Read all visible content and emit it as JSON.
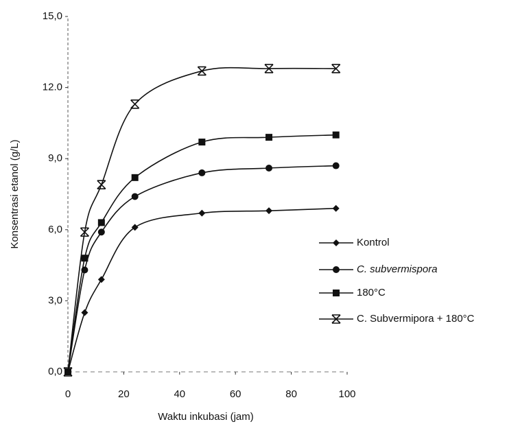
{
  "chart_data": {
    "type": "line",
    "x_label": "Waktu inkubasi (jam)",
    "y_label": "Konsentrasi etanol (g/L)",
    "x": [
      0,
      6,
      12,
      24,
      48,
      72,
      96
    ],
    "xlim": [
      0,
      100
    ],
    "xticks": [
      0,
      20,
      40,
      60,
      80,
      100
    ],
    "ylim": [
      0,
      15
    ],
    "yticks": [
      {
        "value": 0,
        "label": "0,0"
      },
      {
        "value": 3,
        "label": "3,0"
      },
      {
        "value": 6,
        "label": "6,0"
      },
      {
        "value": 9,
        "label": "9,0"
      },
      {
        "value": 12,
        "label": "12.0"
      },
      {
        "value": 15,
        "label": "15,0"
      }
    ],
    "series": [
      {
        "name": "Kontrol",
        "color": "#111111",
        "marker": "diamond",
        "values": [
          0,
          2.5,
          3.9,
          6.1,
          6.7,
          6.8,
          6.9
        ]
      },
      {
        "name": "C. subvermispora",
        "color": "#111111",
        "marker": "circle",
        "values": [
          0,
          4.3,
          5.9,
          7.4,
          8.4,
          8.6,
          8.7
        ]
      },
      {
        "name": "180°C",
        "color": "#111111",
        "marker": "square",
        "values": [
          0,
          4.8,
          6.3,
          8.2,
          9.7,
          9.9,
          10.0
        ]
      },
      {
        "name": "C. Subvermipora + 180°C",
        "color": "#111111",
        "marker": "x",
        "values": [
          0,
          5.9,
          7.9,
          11.3,
          12.7,
          12.8,
          12.8
        ]
      }
    ],
    "legend": "right"
  }
}
